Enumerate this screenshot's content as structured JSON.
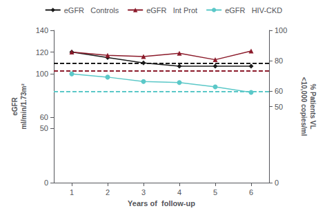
{
  "chart_data": {
    "type": "line",
    "x": [
      1,
      2,
      3,
      4,
      5,
      6
    ],
    "xlim": [
      0.5,
      6.5
    ],
    "xticks": [
      1,
      2,
      3,
      4,
      5,
      6
    ],
    "ylim": [
      0,
      140
    ],
    "yticks": [
      0,
      50,
      60,
      100,
      120,
      140
    ],
    "y2lim": [
      0,
      100
    ],
    "y2ticks": [
      0,
      50,
      60,
      80,
      100
    ],
    "xlabel": "Years of  follow-up",
    "ylabel": "eGFR\nml/min/1.73m²",
    "y2label": "% Patients VL\n<10,000 copies/ml",
    "grid": false,
    "legend": "top",
    "series": [
      {
        "name": "eGFR   Controls",
        "color": "#1a1a1a",
        "marker": "diamond",
        "line_style": "solid",
        "values": [
          120,
          115,
          110,
          107,
          107,
          107
        ],
        "reference_line": 110
      },
      {
        "name": "eGFR   Int Prot",
        "color": "#8b1a2a",
        "marker": "triangle",
        "line_style": "solid",
        "values": [
          120,
          117,
          116,
          119,
          113,
          121
        ],
        "reference_line": 103
      },
      {
        "name": "eGFR   HIV-CKD",
        "color": "#5bc8c8",
        "marker": "circle",
        "line_style": "solid",
        "values": [
          100,
          97,
          93,
          92,
          88,
          83
        ],
        "reference_line": 84
      }
    ]
  }
}
